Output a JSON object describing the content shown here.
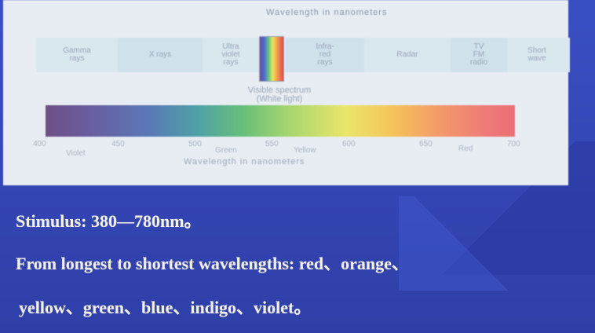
{
  "figure": {
    "top_axis_title": "Wavelength in nanometers",
    "bands": [
      {
        "label": "Gamma\nrays"
      },
      {
        "label": "X rays"
      },
      {
        "label": "Ultra\nviolet\nrays"
      },
      {
        "label": "Infra-\nred\nrays"
      },
      {
        "label": "Radar"
      },
      {
        "label": "TV\nFM\nradio"
      },
      {
        "label": "Short\nwave"
      }
    ],
    "visible_label": "Visible spectrum\n(White light)",
    "bottom_ticks": [
      "400",
      "450",
      "500",
      "550",
      "600",
      "650",
      "700"
    ],
    "bottom_color_names": [
      "Violet",
      "Green",
      "Yellow",
      "Red"
    ],
    "bottom_axis_title": "Wavelength in nanometers"
  },
  "text": {
    "line1": "Stimulus: 380—780nm。",
    "line2": "From longest to shortest wavelengths: red、orange、",
    "line3": "yellow、green、blue、indigo、violet。"
  }
}
